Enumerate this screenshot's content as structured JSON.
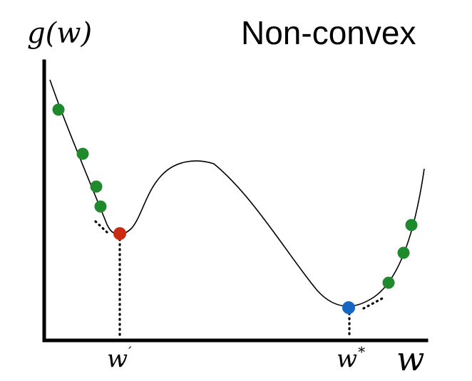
{
  "title": "Non-convex",
  "y_axis_label": "g(w)",
  "x_axis_label": "w",
  "local_min_label": "w",
  "local_min_mark": "′",
  "global_min_label": "w",
  "global_min_mark": "*",
  "colors": {
    "step_points": "#1e8a2c",
    "local_minimum": "#cc2a10",
    "global_minimum": "#1666c4",
    "curve": "#000000"
  }
}
